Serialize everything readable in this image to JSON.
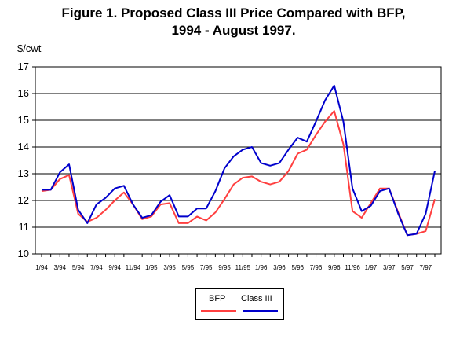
{
  "chart_data": {
    "type": "line",
    "title_line1": "Figure 1.  Proposed Class III Price Compared with BFP,",
    "title_line2": "1994 - August 1997.",
    "ylabel": "$/cwt",
    "ylim": [
      10,
      17
    ],
    "yticks": [
      10,
      11,
      12,
      13,
      14,
      15,
      16,
      17
    ],
    "xlabels": [
      "1/94",
      "3/94",
      "5/94",
      "7/94",
      "9/94",
      "11/94",
      "1/95",
      "3/95",
      "5/95",
      "7/95",
      "9/95",
      "11/95",
      "1/96",
      "3/96",
      "5/96",
      "7/96",
      "9/96",
      "11/96",
      "1/97",
      "3/97",
      "5/97",
      "7/97"
    ],
    "grid": true,
    "legend_position": "bottom-center",
    "series": [
      {
        "name": "BFP",
        "color": "#ff4040",
        "values": [
          12.35,
          12.4,
          12.8,
          12.95,
          11.5,
          11.2,
          11.35,
          11.65,
          12.0,
          12.3,
          11.85,
          11.3,
          11.4,
          11.85,
          11.9,
          11.15,
          11.15,
          11.4,
          11.25,
          11.55,
          12.05,
          12.6,
          12.85,
          12.9,
          12.7,
          12.6,
          12.7,
          13.1,
          13.75,
          13.9,
          14.45,
          14.95,
          15.35,
          14.1,
          11.6,
          11.35,
          11.9,
          12.45,
          12.45,
          11.55,
          10.7,
          10.75,
          10.85,
          12.05
        ]
      },
      {
        "name": "Class III",
        "color": "#0000cc",
        "values": [
          12.4,
          12.4,
          13.05,
          13.35,
          11.65,
          11.15,
          11.85,
          12.1,
          12.45,
          12.55,
          11.85,
          11.35,
          11.45,
          11.95,
          12.2,
          11.4,
          11.4,
          11.7,
          11.7,
          12.35,
          13.2,
          13.65,
          13.9,
          14.0,
          13.4,
          13.3,
          13.4,
          13.9,
          14.35,
          14.2,
          14.95,
          15.75,
          16.3,
          14.95,
          12.45,
          11.6,
          11.8,
          12.35,
          12.45,
          11.5,
          10.7,
          10.75,
          11.5,
          13.1
        ]
      }
    ]
  }
}
